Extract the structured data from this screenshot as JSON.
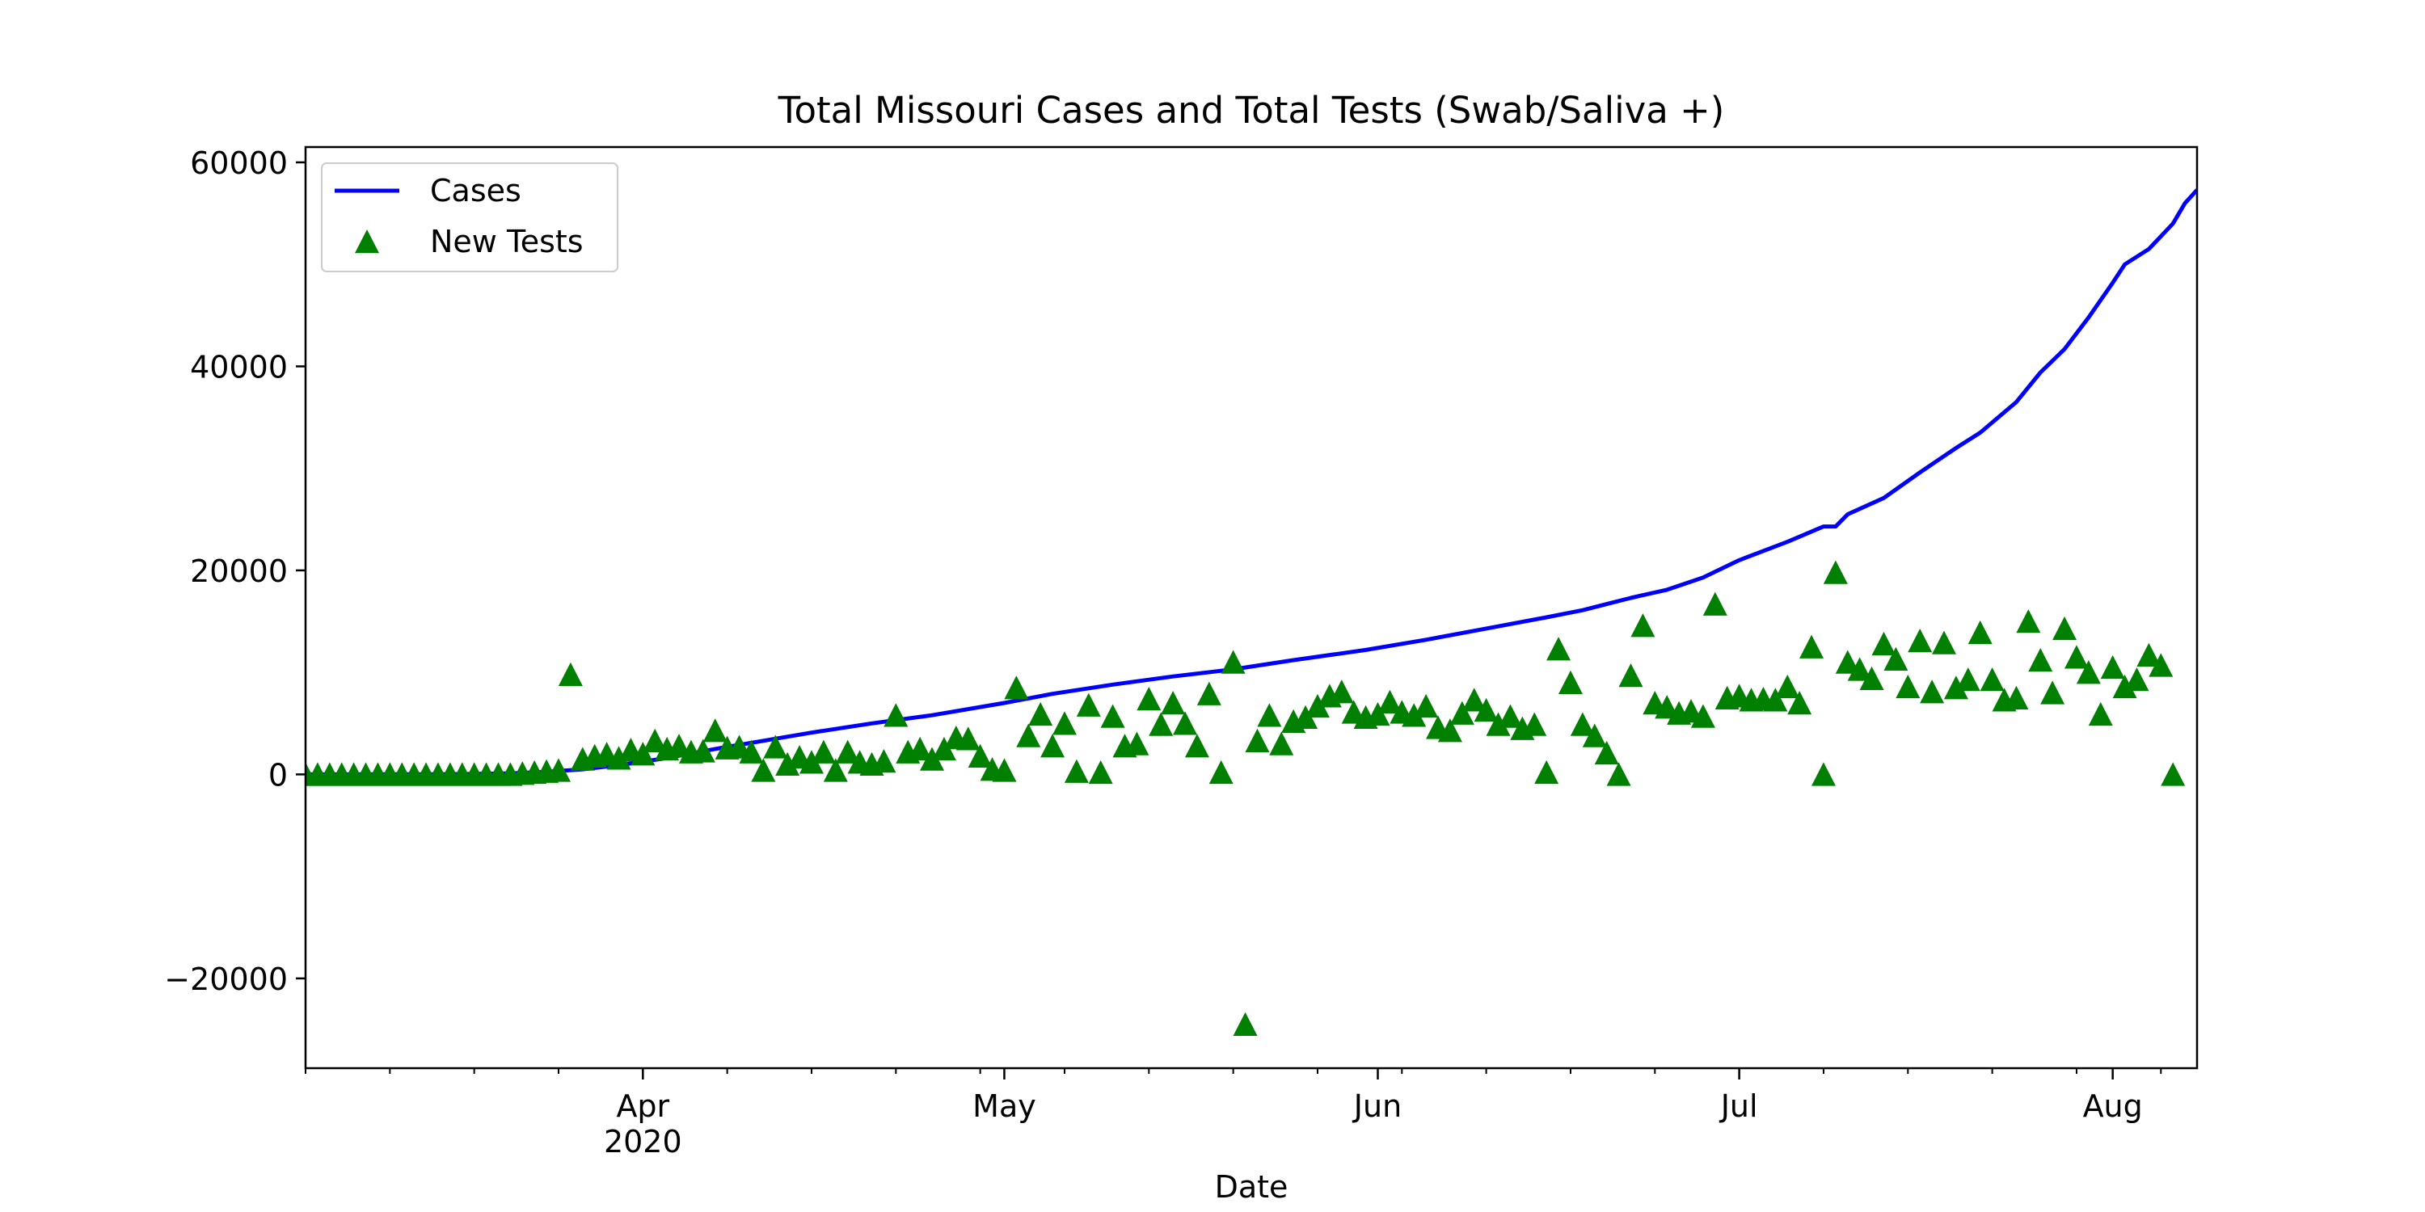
{
  "chart_data": {
    "type": "line+scatter",
    "title": "Total Missouri Cases and Total Tests (Swab/Saliva +)",
    "xlabel": "Date",
    "ylabel": "",
    "x_range": [
      "2020-03-04",
      "2020-08-08"
    ],
    "ylim": [
      -28800,
      61500
    ],
    "yticks": [
      -20000,
      0,
      20000,
      40000,
      60000
    ],
    "ytick_labels": [
      "−20000",
      "0",
      "20000",
      "40000",
      "60000"
    ],
    "xticks": [
      {
        "date": "2020-04-01",
        "label": "Apr",
        "sublabel": "2020"
      },
      {
        "date": "2020-05-01",
        "label": "May",
        "sublabel": ""
      },
      {
        "date": "2020-06-01",
        "label": "Jun",
        "sublabel": ""
      },
      {
        "date": "2020-07-01",
        "label": "Jul",
        "sublabel": ""
      },
      {
        "date": "2020-08-01",
        "label": "Aug",
        "sublabel": ""
      }
    ],
    "legend": {
      "position": "upper-left",
      "entries": [
        {
          "label": "Cases",
          "marker": "line",
          "color": "#0000ff"
        },
        {
          "label": "New Tests",
          "marker": "triangle",
          "color": "#008000"
        }
      ]
    },
    "grid": false,
    "colors": {
      "cases": "#0000ff",
      "tests": "#008000"
    },
    "series": [
      {
        "name": "Cases",
        "type": "line",
        "points": [
          [
            "2020-03-04",
            0
          ],
          [
            "2020-03-08",
            1
          ],
          [
            "2020-03-12",
            5
          ],
          [
            "2020-03-15",
            15
          ],
          [
            "2020-03-18",
            40
          ],
          [
            "2020-03-21",
            100
          ],
          [
            "2020-03-24",
            250
          ],
          [
            "2020-03-27",
            500
          ],
          [
            "2020-03-30",
            900
          ],
          [
            "2020-04-03",
            1600
          ],
          [
            "2020-04-07",
            2500
          ],
          [
            "2020-04-11",
            3300
          ],
          [
            "2020-04-15",
            4100
          ],
          [
            "2020-04-20",
            5000
          ],
          [
            "2020-04-25",
            5800
          ],
          [
            "2020-05-01",
            7000
          ],
          [
            "2020-05-05",
            7900
          ],
          [
            "2020-05-10",
            8800
          ],
          [
            "2020-05-15",
            9600
          ],
          [
            "2020-05-20",
            10300
          ],
          [
            "2020-05-25",
            11200
          ],
          [
            "2020-05-31",
            12200
          ],
          [
            "2020-06-05",
            13200
          ],
          [
            "2020-06-10",
            14300
          ],
          [
            "2020-06-15",
            15400
          ],
          [
            "2020-06-18",
            16100
          ],
          [
            "2020-06-20",
            16700
          ],
          [
            "2020-06-22",
            17300
          ],
          [
            "2020-06-25",
            18100
          ],
          [
            "2020-06-26",
            18500
          ],
          [
            "2020-06-28",
            19300
          ],
          [
            "2020-07-01",
            21000
          ],
          [
            "2020-07-05",
            22800
          ],
          [
            "2020-07-08",
            24300
          ],
          [
            "2020-07-09",
            24300
          ],
          [
            "2020-07-10",
            25500
          ],
          [
            "2020-07-13",
            27100
          ],
          [
            "2020-07-16",
            29600
          ],
          [
            "2020-07-19",
            32000
          ],
          [
            "2020-07-21",
            33500
          ],
          [
            "2020-07-24",
            36500
          ],
          [
            "2020-07-26",
            39400
          ],
          [
            "2020-07-28",
            41700
          ],
          [
            "2020-07-30",
            44800
          ],
          [
            "2020-08-01",
            48200
          ],
          [
            "2020-08-02",
            50000
          ],
          [
            "2020-08-04",
            51500
          ],
          [
            "2020-08-06",
            54000
          ],
          [
            "2020-08-07",
            56000
          ],
          [
            "2020-08-08",
            57300
          ]
        ]
      },
      {
        "name": "New Tests",
        "type": "scatter",
        "points": [
          [
            "2020-03-04",
            0
          ],
          [
            "2020-03-05",
            0
          ],
          [
            "2020-03-06",
            0
          ],
          [
            "2020-03-07",
            0
          ],
          [
            "2020-03-08",
            0
          ],
          [
            "2020-03-09",
            0
          ],
          [
            "2020-03-10",
            0
          ],
          [
            "2020-03-11",
            0
          ],
          [
            "2020-03-12",
            0
          ],
          [
            "2020-03-13",
            0
          ],
          [
            "2020-03-14",
            0
          ],
          [
            "2020-03-15",
            0
          ],
          [
            "2020-03-16",
            0
          ],
          [
            "2020-03-17",
            0
          ],
          [
            "2020-03-18",
            0
          ],
          [
            "2020-03-19",
            0
          ],
          [
            "2020-03-20",
            0
          ],
          [
            "2020-03-21",
            0
          ],
          [
            "2020-03-22",
            100
          ],
          [
            "2020-03-23",
            200
          ],
          [
            "2020-03-24",
            300
          ],
          [
            "2020-03-25",
            400
          ],
          [
            "2020-03-26",
            9800
          ],
          [
            "2020-03-27",
            1500
          ],
          [
            "2020-03-28",
            1800
          ],
          [
            "2020-03-29",
            2000
          ],
          [
            "2020-03-30",
            1600
          ],
          [
            "2020-03-31",
            2400
          ],
          [
            "2020-04-01",
            2000
          ],
          [
            "2020-04-02",
            3300
          ],
          [
            "2020-04-03",
            2500
          ],
          [
            "2020-04-04",
            2800
          ],
          [
            "2020-04-05",
            2200
          ],
          [
            "2020-04-06",
            2300
          ],
          [
            "2020-04-07",
            4300
          ],
          [
            "2020-04-08",
            2600
          ],
          [
            "2020-04-09",
            2700
          ],
          [
            "2020-04-10",
            2200
          ],
          [
            "2020-04-11",
            400
          ],
          [
            "2020-04-12",
            2700
          ],
          [
            "2020-04-13",
            1000
          ],
          [
            "2020-04-14",
            1700
          ],
          [
            "2020-04-15",
            1200
          ],
          [
            "2020-04-16",
            2200
          ],
          [
            "2020-04-17",
            400
          ],
          [
            "2020-04-18",
            2200
          ],
          [
            "2020-04-19",
            1200
          ],
          [
            "2020-04-20",
            1000
          ],
          [
            "2020-04-21",
            1300
          ],
          [
            "2020-04-22",
            5800
          ],
          [
            "2020-04-23",
            2200
          ],
          [
            "2020-04-24",
            2500
          ],
          [
            "2020-04-25",
            1500
          ],
          [
            "2020-04-26",
            2500
          ],
          [
            "2020-04-27",
            3600
          ],
          [
            "2020-04-28",
            3500
          ],
          [
            "2020-04-29",
            1800
          ],
          [
            "2020-04-30",
            500
          ],
          [
            "2020-05-01",
            400
          ],
          [
            "2020-05-02",
            8500
          ],
          [
            "2020-05-03",
            3800
          ],
          [
            "2020-05-04",
            5900
          ],
          [
            "2020-05-05",
            2800
          ],
          [
            "2020-05-06",
            5000
          ],
          [
            "2020-05-07",
            300
          ],
          [
            "2020-05-08",
            6800
          ],
          [
            "2020-05-09",
            200
          ],
          [
            "2020-05-10",
            5700
          ],
          [
            "2020-05-11",
            2800
          ],
          [
            "2020-05-12",
            3000
          ],
          [
            "2020-05-13",
            7400
          ],
          [
            "2020-05-14",
            4900
          ],
          [
            "2020-05-15",
            7000
          ],
          [
            "2020-05-16",
            5000
          ],
          [
            "2020-05-17",
            2800
          ],
          [
            "2020-05-18",
            7900
          ],
          [
            "2020-05-19",
            200
          ],
          [
            "2020-05-20",
            11000
          ],
          [
            "2020-05-21",
            -24500
          ],
          [
            "2020-05-22",
            3300
          ],
          [
            "2020-05-23",
            5800
          ],
          [
            "2020-05-24",
            3000
          ],
          [
            "2020-05-25",
            5200
          ],
          [
            "2020-05-26",
            5600
          ],
          [
            "2020-05-27",
            6700
          ],
          [
            "2020-05-28",
            7700
          ],
          [
            "2020-05-29",
            8100
          ],
          [
            "2020-05-30",
            6100
          ],
          [
            "2020-05-31",
            5600
          ],
          [
            "2020-06-01",
            5900
          ],
          [
            "2020-06-02",
            7100
          ],
          [
            "2020-06-03",
            6100
          ],
          [
            "2020-06-04",
            5800
          ],
          [
            "2020-06-05",
            6700
          ],
          [
            "2020-06-06",
            4600
          ],
          [
            "2020-06-07",
            4300
          ],
          [
            "2020-06-08",
            6000
          ],
          [
            "2020-06-09",
            7300
          ],
          [
            "2020-06-10",
            6300
          ],
          [
            "2020-06-11",
            4900
          ],
          [
            "2020-06-12",
            5700
          ],
          [
            "2020-06-13",
            4500
          ],
          [
            "2020-06-14",
            4900
          ],
          [
            "2020-06-15",
            200
          ],
          [
            "2020-06-16",
            12300
          ],
          [
            "2020-06-17",
            9000
          ],
          [
            "2020-06-18",
            4900
          ],
          [
            "2020-06-19",
            3800
          ],
          [
            "2020-06-20",
            2100
          ],
          [
            "2020-06-21",
            0
          ],
          [
            "2020-06-22",
            9700
          ],
          [
            "2020-06-23",
            14600
          ],
          [
            "2020-06-24",
            7000
          ],
          [
            "2020-06-25",
            6600
          ],
          [
            "2020-06-26",
            6000
          ],
          [
            "2020-06-27",
            6200
          ],
          [
            "2020-06-28",
            5700
          ],
          [
            "2020-06-29",
            16700
          ],
          [
            "2020-06-30",
            7500
          ],
          [
            "2020-07-01",
            7700
          ],
          [
            "2020-07-02",
            7300
          ],
          [
            "2020-07-03",
            7400
          ],
          [
            "2020-07-04",
            7300
          ],
          [
            "2020-07-05",
            8600
          ],
          [
            "2020-07-06",
            7000
          ],
          [
            "2020-07-07",
            12500
          ],
          [
            "2020-07-08",
            0
          ],
          [
            "2020-07-09",
            19800
          ],
          [
            "2020-07-10",
            11000
          ],
          [
            "2020-07-11",
            10300
          ],
          [
            "2020-07-12",
            9400
          ],
          [
            "2020-07-13",
            12800
          ],
          [
            "2020-07-14",
            11300
          ],
          [
            "2020-07-15",
            8600
          ],
          [
            "2020-07-16",
            13100
          ],
          [
            "2020-07-17",
            8100
          ],
          [
            "2020-07-18",
            12900
          ],
          [
            "2020-07-19",
            8500
          ],
          [
            "2020-07-20",
            9300
          ],
          [
            "2020-07-21",
            13900
          ],
          [
            "2020-07-22",
            9300
          ],
          [
            "2020-07-23",
            7300
          ],
          [
            "2020-07-24",
            7500
          ],
          [
            "2020-07-25",
            15000
          ],
          [
            "2020-07-26",
            11200
          ],
          [
            "2020-07-27",
            8000
          ],
          [
            "2020-07-28",
            14300
          ],
          [
            "2020-07-29",
            11500
          ],
          [
            "2020-07-30",
            10000
          ],
          [
            "2020-07-31",
            5900
          ],
          [
            "2020-08-01",
            10500
          ],
          [
            "2020-08-02",
            8600
          ],
          [
            "2020-08-03",
            9300
          ],
          [
            "2020-08-04",
            11700
          ],
          [
            "2020-08-05",
            10700
          ],
          [
            "2020-08-06",
            0
          ]
        ]
      }
    ]
  }
}
